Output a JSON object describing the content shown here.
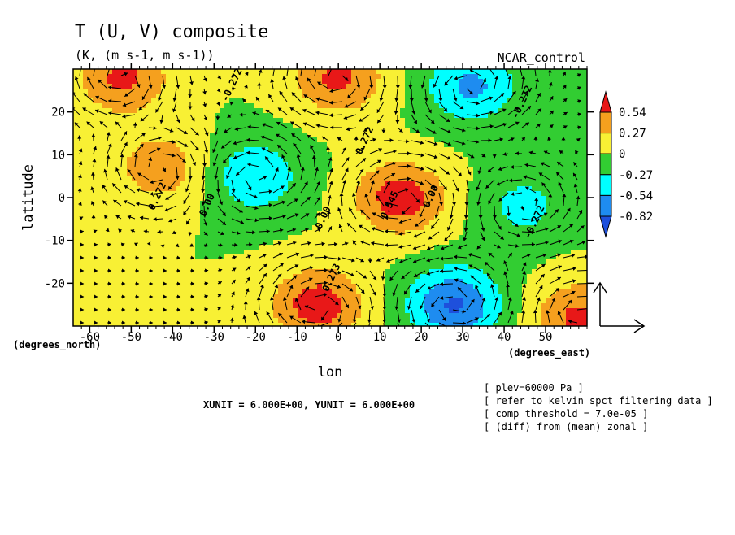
{
  "chart_data": {
    "type": "heatmap",
    "title": "T (U, V) composite",
    "subtitle": "(K, (m s-1, m s-1))",
    "run_label": "NCAR_control",
    "xlabel": "lon",
    "ylabel": "latitude",
    "x_unit_label": "(degrees_east)",
    "y_unit_label": "(degrees_north)",
    "xlim": [
      -64,
      60
    ],
    "ylim": [
      -30,
      30
    ],
    "x_ticks": [
      -60,
      -50,
      -40,
      -30,
      -20,
      -10,
      0,
      10,
      20,
      30,
      40,
      50
    ],
    "x_tick_labels": [
      "-60",
      "-50",
      "-40",
      "-30",
      "-20",
      "-10",
      "0",
      "10",
      "20",
      "30",
      "40",
      "50"
    ],
    "y_ticks": [
      20,
      10,
      0,
      -10,
      -20
    ],
    "y_tick_labels": [
      "20",
      "10",
      "0",
      "-10",
      "-20"
    ],
    "legend": {
      "position": "right",
      "labels": [
        "0.54",
        "0.27",
        "0",
        "-0.27",
        "-0.54",
        "-0.82"
      ],
      "colors": [
        "#e81818",
        "#f5a01e",
        "#f8f034",
        "#32cd32",
        "#00ffff",
        "#1e8cf0",
        "#1e50dc"
      ]
    },
    "contour_levels": [
      -0.82,
      -0.54,
      -0.27,
      0,
      0.27,
      0.54
    ],
    "contour_labels": [
      "-0.272",
      "-0.272",
      "-0.272",
      "0.272",
      "0.272",
      "0.00",
      "0.00",
      "0.00",
      "0.545",
      "0.273"
    ],
    "field_features": [
      {
        "lon": 15,
        "lat": 0,
        "value": 0.7
      },
      {
        "lon": -5,
        "lat": -25,
        "value": 0.7
      },
      {
        "lon": 0,
        "lat": 28,
        "value": 0.6
      },
      {
        "lon": -52,
        "lat": 28,
        "value": 0.6
      },
      {
        "lon": 58,
        "lat": -28,
        "value": 0.6
      },
      {
        "lon": -43,
        "lat": 7,
        "value": 0.45
      },
      {
        "lon": 28,
        "lat": -25,
        "value": -0.85
      },
      {
        "lon": 32,
        "lat": 26,
        "value": -0.6
      },
      {
        "lon": -20,
        "lat": 5,
        "value": -0.5
      },
      {
        "lon": 45,
        "lat": -2,
        "value": -0.35
      }
    ],
    "annotations": {
      "units": "XUNIT = 6.000E+00, YUNIT = 6.000E+00",
      "info": [
        "[ plev=60000 Pa ]",
        "[ refer to kelvin spct filtering data ]",
        "[ comp threshold = 7.0e-05 ]",
        "[ (diff) from (mean) zonal ]"
      ]
    }
  }
}
